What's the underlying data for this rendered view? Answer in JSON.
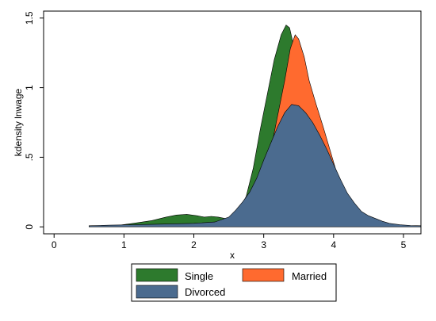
{
  "chart_data": {
    "type": "area",
    "title": "",
    "xlabel": "x",
    "ylabel": "kdensity lnwage",
    "xlim": [
      -0.15,
      5.25
    ],
    "ylim": [
      -0.05,
      1.55
    ],
    "x_ticks": [
      0,
      1,
      2,
      3,
      4,
      5
    ],
    "x_tick_labels": [
      "0",
      "1",
      "2",
      "3",
      "4",
      "5"
    ],
    "y_ticks": [
      0,
      0.5,
      1,
      1.5
    ],
    "y_tick_labels": [
      "0",
      ".5",
      "1",
      "1.5"
    ],
    "grid": false,
    "legend_position": "bottom",
    "series": [
      {
        "name": "Single",
        "color": "#2d7a2d",
        "points": [
          [
            0.5,
            0.005
          ],
          [
            0.9,
            0.01
          ],
          [
            1.2,
            0.03
          ],
          [
            1.4,
            0.045
          ],
          [
            1.6,
            0.07
          ],
          [
            1.75,
            0.085
          ],
          [
            1.9,
            0.09
          ],
          [
            2.05,
            0.08
          ],
          [
            2.15,
            0.07
          ],
          [
            2.25,
            0.075
          ],
          [
            2.35,
            0.07
          ],
          [
            2.45,
            0.06
          ],
          [
            2.55,
            0.07
          ],
          [
            2.65,
            0.12
          ],
          [
            2.75,
            0.22
          ],
          [
            2.85,
            0.42
          ],
          [
            2.95,
            0.7
          ],
          [
            3.05,
            0.95
          ],
          [
            3.15,
            1.2
          ],
          [
            3.25,
            1.38
          ],
          [
            3.32,
            1.45
          ],
          [
            3.37,
            1.43
          ],
          [
            3.42,
            1.32
          ],
          [
            3.5,
            1.12
          ],
          [
            3.6,
            0.92
          ],
          [
            3.7,
            0.72
          ],
          [
            3.8,
            0.55
          ],
          [
            3.9,
            0.42
          ],
          [
            4.0,
            0.3
          ],
          [
            4.1,
            0.2
          ],
          [
            4.2,
            0.12
          ],
          [
            4.35,
            0.07
          ],
          [
            4.5,
            0.045
          ],
          [
            4.7,
            0.025
          ],
          [
            5.0,
            0.01
          ],
          [
            5.25,
            0.005
          ]
        ]
      },
      {
        "name": "Married",
        "color": "#ff6a2f",
        "points": [
          [
            0.7,
            0.003
          ],
          [
            1.0,
            0.008
          ],
          [
            1.5,
            0.012
          ],
          [
            1.9,
            0.018
          ],
          [
            2.2,
            0.025
          ],
          [
            2.5,
            0.045
          ],
          [
            2.7,
            0.1
          ],
          [
            2.85,
            0.2
          ],
          [
            3.0,
            0.38
          ],
          [
            3.1,
            0.55
          ],
          [
            3.2,
            0.8
          ],
          [
            3.3,
            1.05
          ],
          [
            3.38,
            1.28
          ],
          [
            3.45,
            1.38
          ],
          [
            3.5,
            1.35
          ],
          [
            3.58,
            1.22
          ],
          [
            3.65,
            1.05
          ],
          [
            3.75,
            0.88
          ],
          [
            3.85,
            0.72
          ],
          [
            3.95,
            0.55
          ],
          [
            4.05,
            0.38
          ],
          [
            4.15,
            0.24
          ],
          [
            4.25,
            0.14
          ],
          [
            4.4,
            0.08
          ],
          [
            4.6,
            0.045
          ],
          [
            4.8,
            0.02
          ],
          [
            5.0,
            0.01
          ],
          [
            5.25,
            0.005
          ]
        ]
      },
      {
        "name": "Divorced",
        "color": "#4b6b8f",
        "points": [
          [
            0.5,
            0.008
          ],
          [
            0.8,
            0.012
          ],
          [
            1.1,
            0.015
          ],
          [
            1.4,
            0.018
          ],
          [
            1.7,
            0.022
          ],
          [
            2.0,
            0.025
          ],
          [
            2.3,
            0.035
          ],
          [
            2.5,
            0.07
          ],
          [
            2.6,
            0.12
          ],
          [
            2.7,
            0.18
          ],
          [
            2.8,
            0.25
          ],
          [
            2.9,
            0.35
          ],
          [
            3.0,
            0.48
          ],
          [
            3.1,
            0.6
          ],
          [
            3.2,
            0.72
          ],
          [
            3.3,
            0.82
          ],
          [
            3.4,
            0.88
          ],
          [
            3.5,
            0.87
          ],
          [
            3.6,
            0.82
          ],
          [
            3.7,
            0.75
          ],
          [
            3.8,
            0.66
          ],
          [
            3.9,
            0.56
          ],
          [
            4.0,
            0.45
          ],
          [
            4.1,
            0.34
          ],
          [
            4.2,
            0.24
          ],
          [
            4.3,
            0.17
          ],
          [
            4.4,
            0.11
          ],
          [
            4.5,
            0.08
          ],
          [
            4.6,
            0.06
          ],
          [
            4.7,
            0.04
          ],
          [
            4.8,
            0.025
          ],
          [
            4.95,
            0.015
          ],
          [
            5.1,
            0.01
          ],
          [
            5.25,
            0.008
          ]
        ]
      }
    ]
  }
}
